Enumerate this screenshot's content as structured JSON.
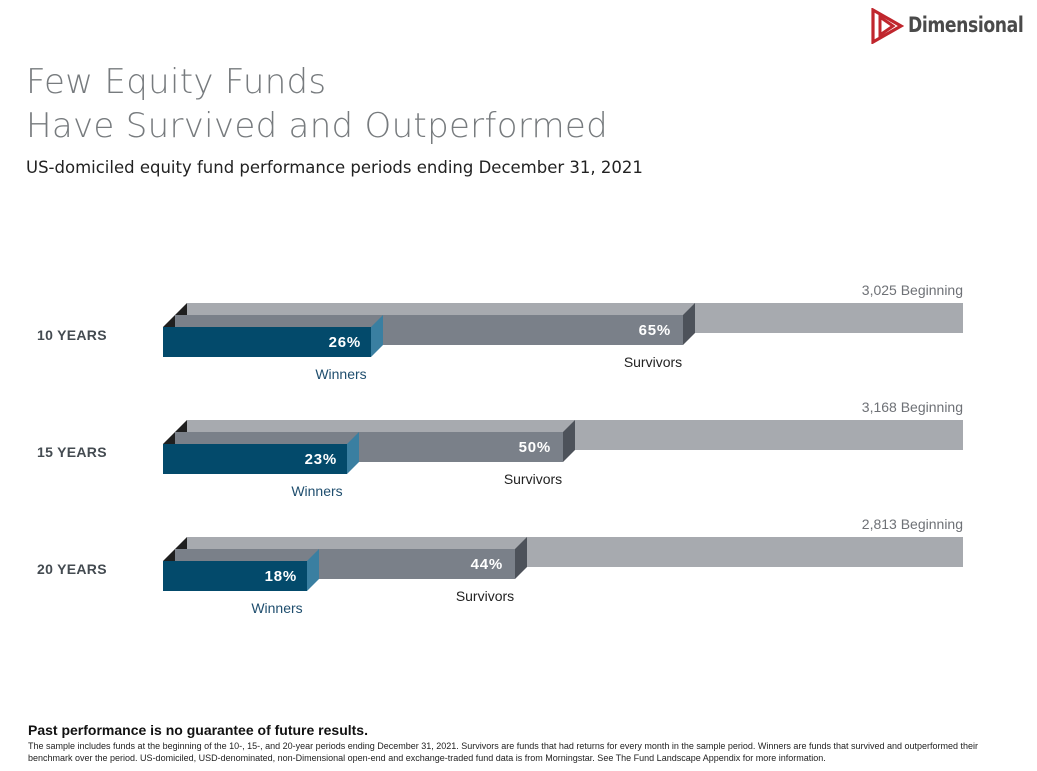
{
  "brand": {
    "name": "Dimensional",
    "color": "#c0262d"
  },
  "title_lines": [
    "Few Equity Funds",
    "Have Survived and Outperformed"
  ],
  "subtitle": "US-domiciled equity fund performance periods ending December 31, 2021",
  "chart_data": {
    "type": "bar",
    "title": "Few Equity Funds Have Survived and Outperformed",
    "categories": [
      "10 YEARS",
      "15 YEARS",
      "20 YEARS"
    ],
    "series": [
      {
        "name": "Beginning",
        "values": [
          100,
          100,
          100
        ],
        "labels": [
          "3,025 Beginning",
          "3,168 Beginning",
          "2,813 Beginning"
        ],
        "counts": [
          3025,
          3168,
          2813
        ],
        "color": "#a7aaaf"
      },
      {
        "name": "Survivors",
        "values": [
          65,
          50,
          44
        ],
        "labels": [
          "65%",
          "50%",
          "44%"
        ],
        "color": "#7a8089"
      },
      {
        "name": "Winners",
        "values": [
          26,
          23,
          18
        ],
        "labels": [
          "26%",
          "23%",
          "18%"
        ],
        "color": "#034a6b"
      }
    ],
    "series_captions": {
      "survivors": "Survivors",
      "winners": "Winners"
    },
    "xlim": [
      0,
      100
    ],
    "xlabel": "",
    "ylabel": ""
  },
  "footer": {
    "headline": "Past performance is no guarantee of future results.",
    "note": "The sample includes funds at the beginning of the 10-, 15-, and 20-year periods ending December 31, 2021. Survivors are funds that had returns for every month in the sample period. Winners are funds that survived and outperformed their benchmark over the period. US-domiciled, USD-denominated, non-Dimensional open-end and exchange-traded fund data is from Morningstar. See The Fund Landscape Appendix for more information."
  }
}
